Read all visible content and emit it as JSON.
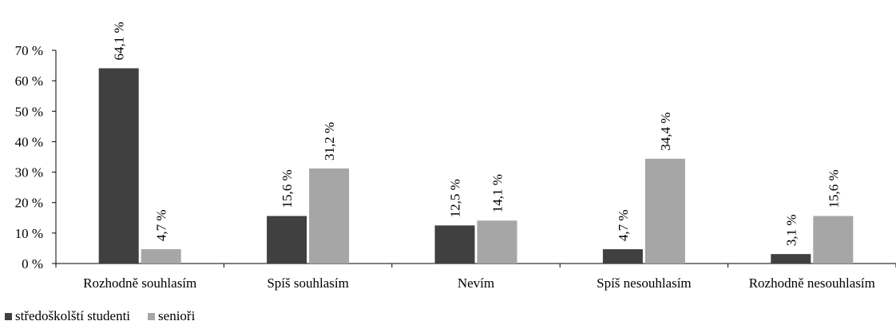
{
  "chart_data": {
    "type": "bar",
    "categories": [
      "Rozhodně souhlasím",
      "Spíš souhlasím",
      "Nevím",
      "Spíš nesouhlasím",
      "Rozhodně nesouhlasím"
    ],
    "series": [
      {
        "name": "středoškolští studenti",
        "color": "#404040",
        "values": [
          64.1,
          15.6,
          12.5,
          4.7,
          3.1
        ],
        "labels": [
          "64,1 %",
          "15,6 %",
          "12,5 %",
          "4,7 %",
          "3,1 %"
        ]
      },
      {
        "name": "senioři",
        "color": "#a6a6a6",
        "values": [
          4.7,
          31.2,
          14.1,
          34.4,
          15.6
        ],
        "labels": [
          "4,7 %",
          "31,2 %",
          "14,1 %",
          "34,4 %",
          "15,6 %"
        ]
      }
    ],
    "yticks": [
      "0 %",
      "10 %",
      "20 %",
      "30 %",
      "40 %",
      "50 %",
      "60 %",
      "70 %"
    ],
    "ylim": [
      0,
      70
    ],
    "legend_position": "bottom-left",
    "grid": false
  }
}
